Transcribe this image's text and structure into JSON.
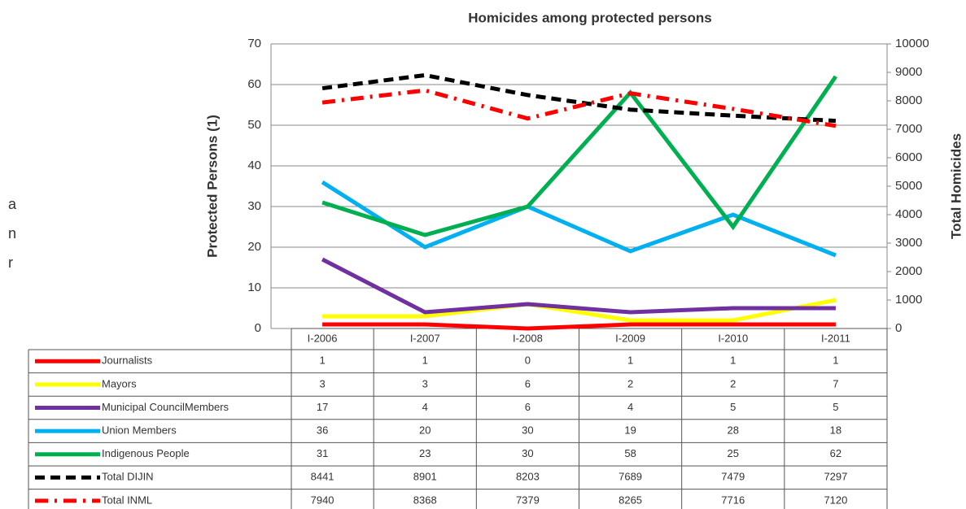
{
  "fragments": [
    "a",
    "n",
    "r"
  ],
  "chart_data": {
    "type": "line",
    "title": "Homicides among protected persons",
    "y_label": "Protected Persons  (1)",
    "y2_label": "Total Homicides",
    "categories": [
      "I-2006",
      "I-2007",
      "I-2008",
      "I-2009",
      "I-2010",
      "I-2011"
    ],
    "ylim": [
      0,
      70
    ],
    "yticks": [
      0,
      10,
      20,
      30,
      40,
      50,
      60,
      70
    ],
    "y2lim": [
      0,
      10000
    ],
    "y2ticks": [
      0,
      1000,
      2000,
      3000,
      4000,
      5000,
      6000,
      7000,
      8000,
      9000,
      10000
    ],
    "grid": true,
    "series": [
      {
        "name": "Journalists",
        "color": "#ff0000",
        "dash": "solid",
        "values": [
          1,
          1,
          0,
          1,
          1,
          1
        ]
      },
      {
        "name": "Mayors",
        "color": "#ffff00",
        "dash": "solid",
        "values": [
          3,
          3,
          6,
          2,
          2,
          7
        ]
      },
      {
        "name": "Municipal CouncilMembers",
        "color": "#7030a0",
        "dash": "solid",
        "values": [
          17,
          4,
          6,
          4,
          5,
          5
        ]
      },
      {
        "name": "Union Members",
        "color": "#00b0f0",
        "dash": "solid",
        "values": [
          36,
          20,
          30,
          19,
          28,
          18
        ]
      },
      {
        "name": "Indigenous People",
        "color": "#00b050",
        "dash": "solid",
        "values": [
          31,
          23,
          30,
          58,
          25,
          62
        ]
      },
      {
        "name": "Total DIJIN",
        "color": "#000000",
        "dash": "dashed",
        "axis": "y2",
        "values": [
          8441,
          8901,
          8203,
          7689,
          7479,
          7297
        ]
      },
      {
        "name": "Total INML",
        "color": "#ff0000",
        "dash": "dashdot",
        "axis": "y2",
        "values": [
          7940,
          8368,
          7379,
          8265,
          7716,
          7120
        ]
      }
    ]
  }
}
